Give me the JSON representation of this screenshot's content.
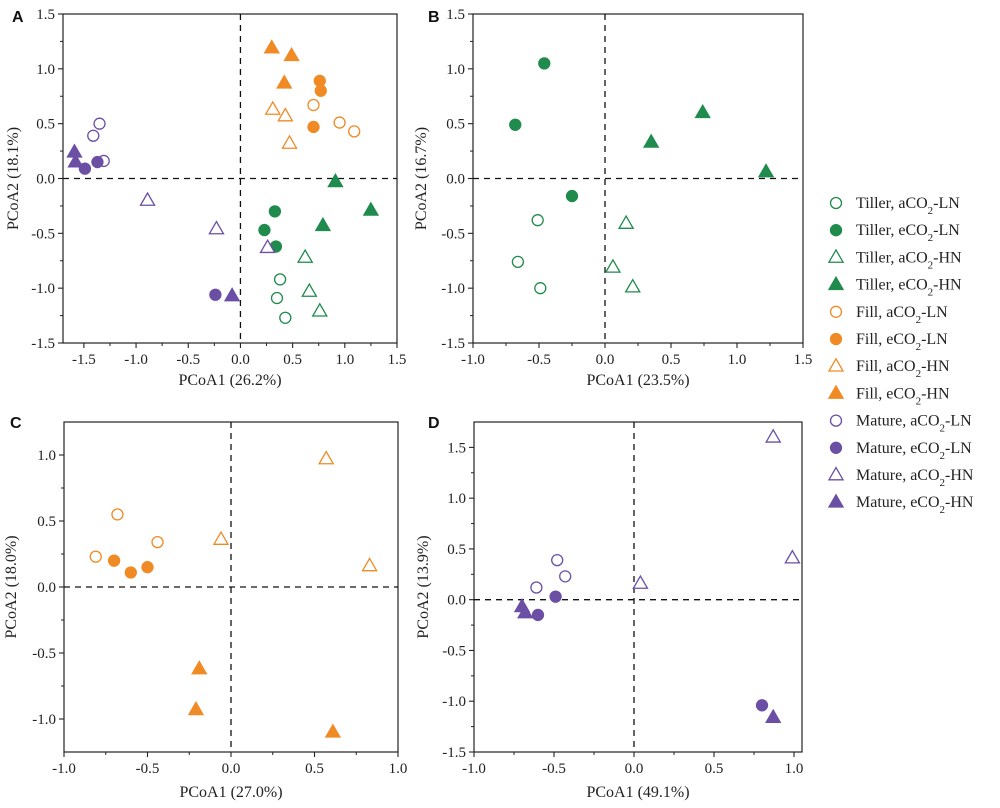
{
  "colors": {
    "tiller": "#1f8b4c",
    "fill": "#f08a24",
    "mature": "#6b4fa5",
    "axis": "#222222"
  },
  "legend": [
    {
      "label": "Tiller, aCO₂-LN",
      "group": "tiller",
      "shape": "circle",
      "filled": false
    },
    {
      "label": "Tiller, eCO₂-LN",
      "group": "tiller",
      "shape": "circle",
      "filled": true
    },
    {
      "label": "Tiller, aCO₂-HN",
      "group": "tiller",
      "shape": "triangle",
      "filled": false
    },
    {
      "label": "Tiller, eCO₂-HN",
      "group": "tiller",
      "shape": "triangle",
      "filled": true
    },
    {
      "label": "Fill, aCO₂-LN",
      "group": "fill",
      "shape": "circle",
      "filled": false
    },
    {
      "label": "Fill, eCO₂-LN",
      "group": "fill",
      "shape": "circle",
      "filled": true
    },
    {
      "label": "Fill, aCO₂-HN",
      "group": "fill",
      "shape": "triangle",
      "filled": false
    },
    {
      "label": "Fill, eCO₂-HN",
      "group": "fill",
      "shape": "triangle",
      "filled": true
    },
    {
      "label": "Mature, aCO₂-LN",
      "group": "mature",
      "shape": "circle",
      "filled": false
    },
    {
      "label": "Mature, eCO₂-LN",
      "group": "mature",
      "shape": "circle",
      "filled": true
    },
    {
      "label": "Mature, aCO₂-HN",
      "group": "mature",
      "shape": "triangle",
      "filled": false
    },
    {
      "label": "Mature, eCO₂-HN",
      "group": "mature",
      "shape": "triangle",
      "filled": true
    }
  ],
  "chart_data": [
    {
      "type": "scatter",
      "panel": "A",
      "xlabel": "PCoA1 (26.2%)",
      "ylabel": "PCoA2 (18.1%)",
      "xlim": [
        -1.7,
        1.5
      ],
      "ylim": [
        -1.5,
        1.5
      ],
      "xticks": [
        "-1.5",
        "-1.0",
        "-0.5",
        "0.0",
        "0.5",
        "1.0",
        "1.5"
      ],
      "xtick_values": [
        -1.5,
        -1.0,
        -0.5,
        0.0,
        0.5,
        1.0,
        1.5
      ],
      "yticks": [
        "-1.5",
        "-1.0",
        "-0.5",
        "0.0",
        "0.5",
        "1.0",
        "1.5"
      ],
      "ytick_values": [
        -1.5,
        -1.0,
        -0.5,
        0.0,
        0.5,
        1.0,
        1.5
      ],
      "series": [
        {
          "name": "Tiller, aCO2-LN",
          "group": "tiller",
          "shape": "circle",
          "filled": false,
          "points": [
            [
              0.38,
              -0.92
            ],
            [
              0.35,
              -1.09
            ],
            [
              0.43,
              -1.27
            ]
          ]
        },
        {
          "name": "Tiller, eCO2-LN",
          "group": "tiller",
          "shape": "circle",
          "filled": true,
          "points": [
            [
              0.33,
              -0.3
            ],
            [
              0.23,
              -0.47
            ],
            [
              0.34,
              -0.62
            ]
          ]
        },
        {
          "name": "Tiller, aCO2-HN",
          "group": "tiller",
          "shape": "triangle",
          "filled": false,
          "points": [
            [
              0.62,
              -0.72
            ],
            [
              0.66,
              -1.03
            ],
            [
              0.76,
              -1.21
            ]
          ]
        },
        {
          "name": "Tiller, eCO2-HN",
          "group": "tiller",
          "shape": "triangle",
          "filled": true,
          "points": [
            [
              0.91,
              -0.03
            ],
            [
              1.25,
              -0.29
            ],
            [
              0.79,
              -0.43
            ]
          ]
        },
        {
          "name": "Fill, aCO2-LN",
          "group": "fill",
          "shape": "circle",
          "filled": false,
          "points": [
            [
              0.7,
              0.67
            ],
            [
              0.95,
              0.51
            ],
            [
              1.09,
              0.43
            ]
          ]
        },
        {
          "name": "Fill, eCO2-LN",
          "group": "fill",
          "shape": "circle",
          "filled": true,
          "points": [
            [
              0.76,
              0.89
            ],
            [
              0.77,
              0.8
            ],
            [
              0.7,
              0.47
            ]
          ]
        },
        {
          "name": "Fill, aCO2-HN",
          "group": "fill",
          "shape": "triangle",
          "filled": false,
          "points": [
            [
              0.31,
              0.63
            ],
            [
              0.43,
              0.57
            ],
            [
              0.47,
              0.32
            ]
          ]
        },
        {
          "name": "Fill, eCO2-HN",
          "group": "fill",
          "shape": "triangle",
          "filled": true,
          "points": [
            [
              0.3,
              1.19
            ],
            [
              0.49,
              1.12
            ],
            [
              0.42,
              0.87
            ]
          ]
        },
        {
          "name": "Mature, aCO2-LN",
          "group": "mature",
          "shape": "circle",
          "filled": false,
          "points": [
            [
              -1.35,
              0.5
            ],
            [
              -1.41,
              0.39
            ],
            [
              -1.31,
              0.16
            ]
          ]
        },
        {
          "name": "Mature, eCO2-LN",
          "group": "mature",
          "shape": "circle",
          "filled": true,
          "points": [
            [
              -1.37,
              0.15
            ],
            [
              -1.49,
              0.09
            ],
            [
              -0.24,
              -1.06
            ]
          ]
        },
        {
          "name": "Mature, aCO2-HN",
          "group": "mature",
          "shape": "triangle",
          "filled": false,
          "points": [
            [
              -0.89,
              -0.2
            ],
            [
              -0.23,
              -0.46
            ],
            [
              0.26,
              -0.63
            ]
          ]
        },
        {
          "name": "Mature, eCO2-HN",
          "group": "mature",
          "shape": "triangle",
          "filled": true,
          "points": [
            [
              -1.59,
              0.24
            ],
            [
              -1.58,
              0.15
            ],
            [
              -0.08,
              -1.07
            ]
          ]
        }
      ]
    },
    {
      "type": "scatter",
      "panel": "B",
      "xlabel": "PCoA1 (23.5%)",
      "ylabel": "PCoA2 (16.7%)",
      "xlim": [
        -1.0,
        1.5
      ],
      "ylim": [
        -1.5,
        1.5
      ],
      "xticks": [
        "-1.0",
        "-0.5",
        "0.0",
        "0.5",
        "1.0",
        "1.5"
      ],
      "xtick_values": [
        -1.0,
        -0.5,
        0.0,
        0.5,
        1.0,
        1.5
      ],
      "yticks": [
        "-1.5",
        "-1.0",
        "-0.5",
        "0.0",
        "0.5",
        "1.0",
        "1.5"
      ],
      "ytick_values": [
        -1.5,
        -1.0,
        -0.5,
        0.0,
        0.5,
        1.0,
        1.5
      ],
      "series": [
        {
          "name": "Tiller, aCO2-LN",
          "group": "tiller",
          "shape": "circle",
          "filled": false,
          "points": [
            [
              -0.51,
              -0.38
            ],
            [
              -0.66,
              -0.76
            ],
            [
              -0.49,
              -1.0
            ]
          ]
        },
        {
          "name": "Tiller, eCO2-LN",
          "group": "tiller",
          "shape": "circle",
          "filled": true,
          "points": [
            [
              -0.46,
              1.05
            ],
            [
              -0.68,
              0.49
            ],
            [
              -0.25,
              -0.16
            ]
          ]
        },
        {
          "name": "Tiller, aCO2-HN",
          "group": "tiller",
          "shape": "triangle",
          "filled": false,
          "points": [
            [
              0.16,
              -0.41
            ],
            [
              0.06,
              -0.81
            ],
            [
              0.21,
              -0.99
            ]
          ]
        },
        {
          "name": "Tiller, eCO2-HN",
          "group": "tiller",
          "shape": "triangle",
          "filled": true,
          "points": [
            [
              0.74,
              0.6
            ],
            [
              0.35,
              0.33
            ],
            [
              1.22,
              0.06
            ]
          ]
        }
      ]
    },
    {
      "type": "scatter",
      "panel": "C",
      "xlabel": "PCoA1 (27.0%)",
      "ylabel": "PCoA2 (18.0%)",
      "xlim": [
        -1.0,
        1.0
      ],
      "ylim": [
        -1.25,
        1.25
      ],
      "xticks": [
        "-1.0",
        "-0.5",
        "0.0",
        "0.5",
        "1.0"
      ],
      "xtick_values": [
        -1.0,
        -0.5,
        0.0,
        0.5,
        1.0
      ],
      "yticks": [
        "-1.0",
        "-0.5",
        "0.0",
        "0.5",
        "1.0"
      ],
      "ytick_values": [
        -1.0,
        -0.5,
        0.0,
        0.5,
        1.0
      ],
      "series": [
        {
          "name": "Fill, aCO2-LN",
          "group": "fill",
          "shape": "circle",
          "filled": false,
          "points": [
            [
              -0.68,
              0.55
            ],
            [
              -0.44,
              0.34
            ],
            [
              -0.81,
              0.23
            ]
          ]
        },
        {
          "name": "Fill, eCO2-LN",
          "group": "fill",
          "shape": "circle",
          "filled": true,
          "points": [
            [
              -0.7,
              0.2
            ],
            [
              -0.6,
              0.11
            ],
            [
              -0.5,
              0.15
            ]
          ]
        },
        {
          "name": "Fill, aCO2-HN",
          "group": "fill",
          "shape": "triangle",
          "filled": false,
          "points": [
            [
              0.57,
              0.97
            ],
            [
              -0.06,
              0.36
            ],
            [
              0.83,
              0.16
            ]
          ]
        },
        {
          "name": "Fill, eCO2-HN",
          "group": "fill",
          "shape": "triangle",
          "filled": true,
          "points": [
            [
              -0.19,
              -0.62
            ],
            [
              -0.21,
              -0.93
            ],
            [
              0.61,
              -1.1
            ]
          ]
        }
      ]
    },
    {
      "type": "scatter",
      "panel": "D",
      "xlabel": "PCoA1 (49.1%)",
      "ylabel": "PCoA2 (13.9%)",
      "xlim": [
        -1.0,
        1.05
      ],
      "ylim": [
        -1.5,
        1.75
      ],
      "xticks": [
        "-1.0",
        "-0.5",
        "0.0",
        "0.5",
        "1.0"
      ],
      "xtick_values": [
        -1.0,
        -0.5,
        0.0,
        0.5,
        1.0
      ],
      "yticks": [
        "-1.5",
        "-1.0",
        "-0.5",
        "0.0",
        "0.5",
        "1.0",
        "1.5"
      ],
      "ytick_values": [
        -1.5,
        -1.0,
        -0.5,
        0.0,
        0.5,
        1.0,
        1.5
      ],
      "series": [
        {
          "name": "Mature, aCO2-LN",
          "group": "mature",
          "shape": "circle",
          "filled": false,
          "points": [
            [
              -0.48,
              0.39
            ],
            [
              -0.43,
              0.23
            ],
            [
              -0.61,
              0.12
            ]
          ]
        },
        {
          "name": "Mature, eCO2-LN",
          "group": "mature",
          "shape": "circle",
          "filled": true,
          "points": [
            [
              -0.49,
              0.03
            ],
            [
              -0.6,
              -0.15
            ],
            [
              0.8,
              -1.04
            ]
          ]
        },
        {
          "name": "Mature, aCO2-HN",
          "group": "mature",
          "shape": "triangle",
          "filled": false,
          "points": [
            [
              0.87,
              1.6
            ],
            [
              0.99,
              0.41
            ],
            [
              0.04,
              0.16
            ]
          ]
        },
        {
          "name": "Mature, eCO2-HN",
          "group": "mature",
          "shape": "triangle",
          "filled": true,
          "points": [
            [
              -0.7,
              -0.07
            ],
            [
              -0.68,
              -0.13
            ],
            [
              0.87,
              -1.16
            ]
          ]
        }
      ]
    }
  ]
}
